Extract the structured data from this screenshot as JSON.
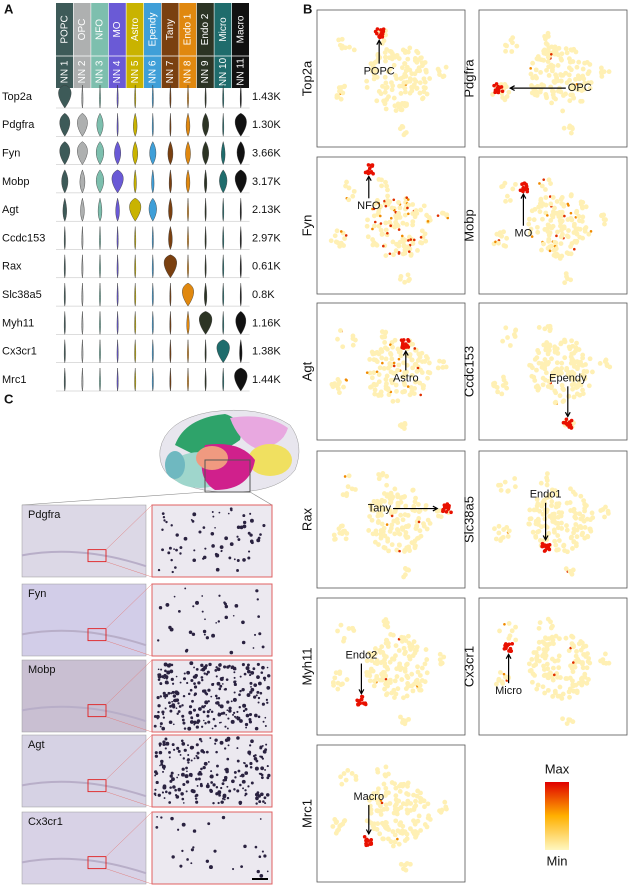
{
  "panels": {
    "a": {
      "label": "A",
      "columns": [
        {
          "cell": "POPC",
          "cluster": "NN 1",
          "color": "#3d5a58"
        },
        {
          "cell": "OPC",
          "cluster": "NN 2",
          "color": "#aeb0b0"
        },
        {
          "cell": "NFO",
          "cluster": "NN 3",
          "color": "#7dbfae"
        },
        {
          "cell": "MO",
          "cluster": "NN 4",
          "color": "#6a5ad6"
        },
        {
          "cell": "Astro",
          "cluster": "NN 5",
          "color": "#c9b300"
        },
        {
          "cell": "Ependy",
          "cluster": "NN 6",
          "color": "#3f9fd8"
        },
        {
          "cell": "Tany",
          "cluster": "NN 7",
          "color": "#7a4010"
        },
        {
          "cell": "Endo 1",
          "cluster": "NN 8",
          "color": "#e0880f"
        },
        {
          "cell": "Endo 2",
          "cluster": "NN 9",
          "color": "#2c3424"
        },
        {
          "cell": "Micro",
          "cluster": "NN 10",
          "color": "#1f6c6c"
        },
        {
          "cell": "Macro",
          "cluster": "NN 11",
          "color": "#111111"
        }
      ],
      "rows": [
        {
          "gene": "Top2a",
          "max": "1.43K",
          "widths": [
            1,
            0.1,
            0.1,
            0.1,
            0.1,
            0.1,
            0.1,
            0.1,
            0.1,
            0.1,
            0.1
          ]
        },
        {
          "gene": "Pdgfra",
          "max": "1.30K",
          "widths": [
            0.8,
            0.8,
            0.5,
            0.1,
            0.3,
            0.1,
            0.1,
            0.3,
            0.5,
            0.1,
            0.9
          ]
        },
        {
          "gene": "Fyn",
          "max": "3.66K",
          "widths": [
            0.8,
            0.8,
            0.6,
            0.5,
            0.4,
            0.5,
            0.4,
            0.4,
            0.5,
            0.3,
            0.6
          ]
        },
        {
          "gene": "Mobp",
          "max": "3.17K",
          "widths": [
            0.5,
            0.4,
            0.6,
            0.9,
            0.2,
            0.2,
            0.2,
            0.3,
            0.2,
            0.6,
            0.9
          ]
        },
        {
          "gene": "Agt",
          "max": "2.13K",
          "widths": [
            0.3,
            0.3,
            0.3,
            0.3,
            0.9,
            0.6,
            0.3,
            0.1,
            0.1,
            0.1,
            0.1
          ]
        },
        {
          "gene": "Ccdc153",
          "max": "2.97K",
          "widths": [
            0.1,
            0.1,
            0.1,
            0.1,
            0.1,
            0.1,
            0.3,
            0.1,
            0.1,
            0.1,
            0.1
          ]
        },
        {
          "gene": "Rax",
          "max": "0.61K",
          "widths": [
            0.1,
            0.1,
            0.1,
            0.1,
            0.1,
            0.1,
            1,
            0.1,
            0.1,
            0.1,
            0.1
          ]
        },
        {
          "gene": "Slc38a5",
          "max": "0.8K",
          "widths": [
            0.1,
            0.1,
            0.1,
            0.1,
            0.1,
            0.1,
            0.1,
            0.9,
            0.2,
            0.1,
            0.1
          ]
        },
        {
          "gene": "Myh11",
          "max": "1.16K",
          "widths": [
            0.1,
            0.1,
            0.1,
            0.1,
            0.1,
            0.1,
            0.1,
            0.2,
            1,
            0.1,
            0.8
          ]
        },
        {
          "gene": "Cx3cr1",
          "max": "1.38K",
          "widths": [
            0.1,
            0.1,
            0.1,
            0.1,
            0.1,
            0.1,
            0.1,
            0.1,
            0.1,
            1,
            0.2
          ]
        },
        {
          "gene": "Mrc1",
          "max": "1.44K",
          "widths": [
            0.1,
            0.1,
            0.1,
            0.1,
            0.1,
            0.1,
            0.1,
            0.1,
            0.1,
            0.1,
            1
          ]
        }
      ]
    },
    "b": {
      "label": "B",
      "maps": [
        {
          "gene": "Top2a",
          "annotation": "POPC"
        },
        {
          "gene": "Pdgfra",
          "annotation": "OPC"
        },
        {
          "gene": "Fyn",
          "annotation": "NFO"
        },
        {
          "gene": "Mobp",
          "annotation": "MO"
        },
        {
          "gene": "Agt",
          "annotation": "Astro"
        },
        {
          "gene": "Ccdc153",
          "annotation": "Ependy"
        },
        {
          "gene": "Rax",
          "annotation": "Tany"
        },
        {
          "gene": "Slc38a5",
          "annotation": "Endo1"
        },
        {
          "gene": "Myh11",
          "annotation": "Endo2"
        },
        {
          "gene": "Cx3cr1",
          "annotation": "Micro"
        },
        {
          "gene": "Mrc1",
          "annotation": "Macro"
        }
      ],
      "scale": {
        "max": "Max",
        "min": "Min"
      }
    },
    "c": {
      "label": "C",
      "sections": [
        "Pdgfra",
        "Fyn",
        "Mobp",
        "Agt",
        "Cx3cr1"
      ]
    }
  }
}
